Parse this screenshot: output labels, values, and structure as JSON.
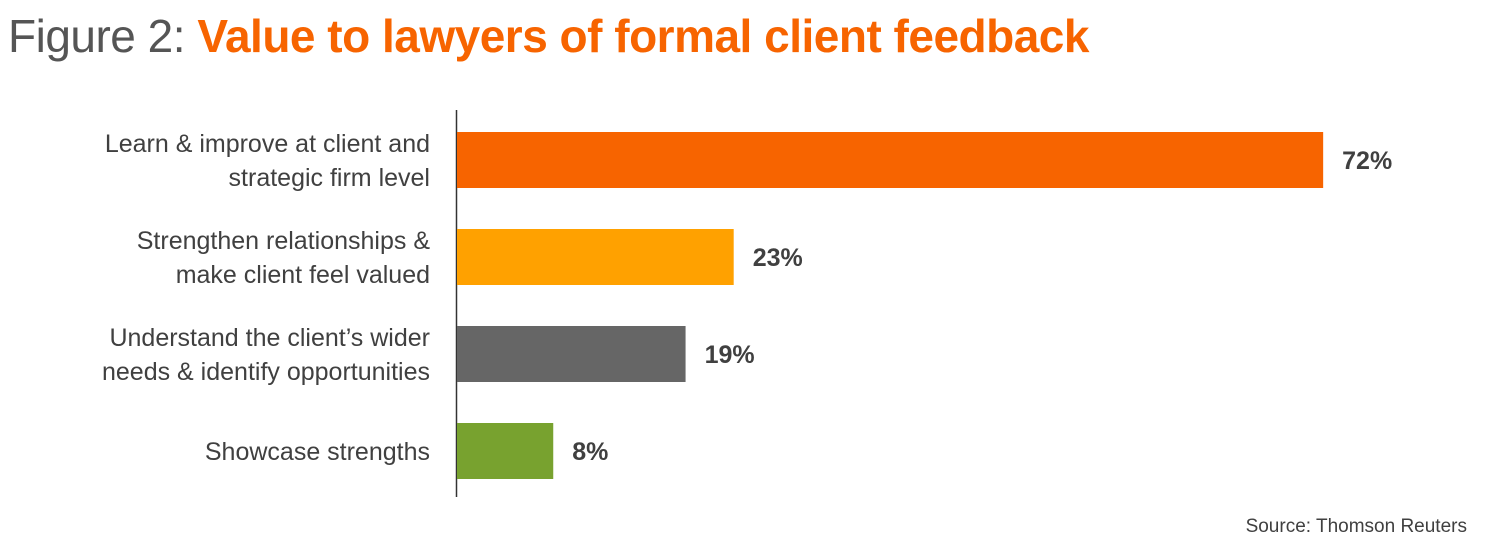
{
  "title": {
    "prefix": "Figure 2:",
    "main": "Value to lawyers of formal client feedback"
  },
  "source": "Source: Thomson Reuters",
  "chart_data": {
    "type": "bar",
    "orientation": "horizontal",
    "title": "Value to lawyers of formal client feedback",
    "categories": [
      [
        "Learn & improve at client and",
        "strategic firm level"
      ],
      [
        "Strengthen relationships &",
        "make client feel valued"
      ],
      [
        "Understand the client’s wider",
        "needs & identify opportunities"
      ],
      [
        "Showcase strengths"
      ]
    ],
    "values": [
      72,
      23,
      19,
      8
    ],
    "value_labels": [
      "72%",
      "23%",
      "19%",
      "8%"
    ],
    "colors": [
      "#f76400",
      "#ffa100",
      "#666666",
      "#78a22f"
    ],
    "xlim": [
      0,
      100
    ],
    "unit": "%",
    "grid": false
  }
}
